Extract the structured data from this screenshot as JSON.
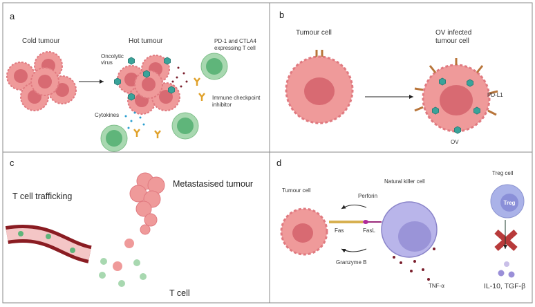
{
  "panels": {
    "a": {
      "label": "a",
      "cold": "Cold tumour",
      "hot": "Hot tumour",
      "virus": [
        "Oncolytic",
        "virus"
      ],
      "tcell": [
        "PD-1 and CTLA4",
        "expressing T cell"
      ],
      "inhibitor": [
        "Immune checkpoint",
        "inhibitor"
      ],
      "cytokines": "Cytokines"
    },
    "b": {
      "label": "b",
      "tumour": "Tumour cell",
      "infected": [
        "OV infected",
        "tumour cell"
      ],
      "pdl1": "PD-L1",
      "ov": "OV"
    },
    "c": {
      "label": "c",
      "meta": "Metastasised tumour",
      "trafficking": "T cell trafficking",
      "tcell": "T cell"
    },
    "d": {
      "label": "d",
      "tumour": "Tumour cell",
      "nk": "Natural killer cell",
      "treg_title": "Treg cell",
      "treg": "Treg",
      "perforin": "Perforin",
      "fas": "Fas",
      "fasl": "FasL",
      "granzyme": "Granzyme B",
      "tnf": "TNF-α",
      "il": "IL-10, TGF-β"
    }
  },
  "colors": {
    "tumour": "#ef8f8f",
    "nucleus": "#d86a72",
    "tcell": "#9fd3a8",
    "virus": "#3aa39a",
    "nk": "#b9b5ea",
    "treg": "#aab2e8",
    "cross": "#b83a3a",
    "vessel": "#8a1c22",
    "inhibitor": "#e0a12a"
  }
}
